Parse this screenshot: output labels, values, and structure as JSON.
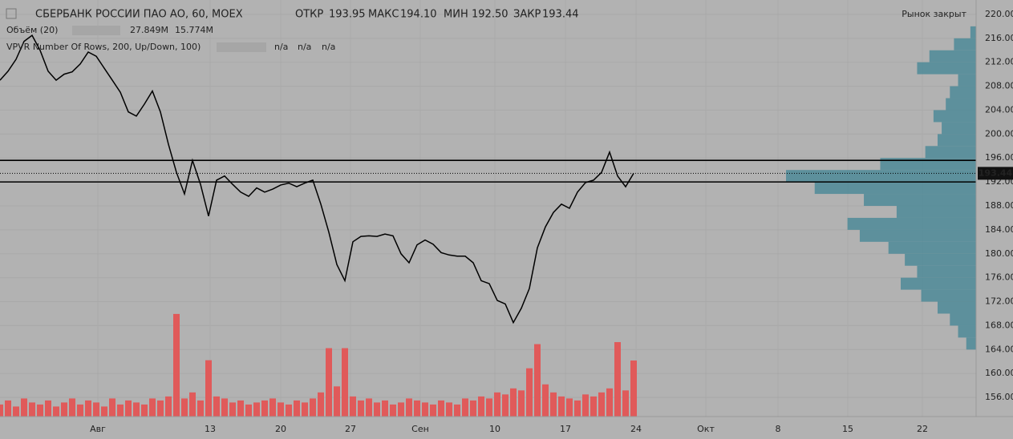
{
  "chart_data": {
    "type": "line",
    "header": {
      "symbol": "СБЕРБАНК РОССИИ ПАО АО, 60, MOEX",
      "open_label": "ОТКР",
      "open": "193.95",
      "high_label": "МАКС",
      "high": "194.10",
      "low_label": "МИН",
      "low": "192.50",
      "close_label": "ЗАКР",
      "close": "193.44",
      "status": "Рынок закрыт"
    },
    "volume_indicator": {
      "name": "Объём (20)",
      "value": "27.849M",
      "ma": "15.774M"
    },
    "vpvr_indicator": {
      "name": "VPVR Number Of Rows, 200, Up/Down, 100)",
      "values": [
        "n/a",
        "n/a",
        "n/a"
      ]
    },
    "last_price": 193.44,
    "last_price_label": "193.44",
    "hlines": [
      195.6,
      192.0
    ],
    "xlim": [
      0,
      121.7
    ],
    "xticks": [
      {
        "value": 12.2,
        "label": "Авг"
      },
      {
        "value": 26.2,
        "label": "13"
      },
      {
        "value": 35,
        "label": "20"
      },
      {
        "value": 43.7,
        "label": "27"
      },
      {
        "value": 52.4,
        "label": "Сен"
      },
      {
        "value": 61.7,
        "label": "10"
      },
      {
        "value": 70.5,
        "label": "17"
      },
      {
        "value": 79.3,
        "label": "24"
      },
      {
        "value": 88,
        "label": "Окт"
      },
      {
        "value": 97,
        "label": "8"
      },
      {
        "value": 105.7,
        "label": "15"
      },
      {
        "value": 115,
        "label": "22"
      }
    ],
    "ylim": [
      152.8,
      222.4
    ],
    "yticks": [
      {
        "value": 156,
        "label": "156.00"
      },
      {
        "value": 160,
        "label": "160.00"
      },
      {
        "value": 164,
        "label": "164.00"
      },
      {
        "value": 168,
        "label": "168.00"
      },
      {
        "value": 172,
        "label": "172.00"
      },
      {
        "value": 176,
        "label": "176.00"
      },
      {
        "value": 180,
        "label": "180.00"
      },
      {
        "value": 184,
        "label": "184.00"
      },
      {
        "value": 188,
        "label": "188.00"
      },
      {
        "value": 192,
        "label": "192.00"
      },
      {
        "value": 196,
        "label": "196.00"
      },
      {
        "value": 200,
        "label": "200.00"
      },
      {
        "value": 204,
        "label": "204.00"
      },
      {
        "value": 208,
        "label": "208.00"
      },
      {
        "value": 212,
        "label": "212.00"
      },
      {
        "value": 216,
        "label": "216.00"
      },
      {
        "value": 220,
        "label": "220.00"
      }
    ],
    "grid": true,
    "series": [
      {
        "color": "#000000",
        "values": [
          209.0,
          210.5,
          212.5,
          215.5,
          216.5,
          214,
          210.5,
          209,
          210,
          210.4,
          211.7,
          213.7,
          213,
          211,
          209,
          207,
          203.7,
          203,
          205,
          207.2,
          203.7,
          198.3,
          193.6,
          190,
          195.6,
          191.6,
          186.3,
          192.3,
          193,
          191.6,
          190.3,
          189.6,
          191,
          190.3,
          190.8,
          191.5,
          191.8,
          191.2,
          191.8,
          192.3,
          188.3,
          183.6,
          178.2,
          175.5,
          182,
          182.9,
          183,
          182.9,
          183.3,
          183,
          180,
          178.5,
          181.5,
          182.3,
          181.6,
          180.2,
          179.8,
          179.6,
          179.6,
          178.5,
          175.5,
          175,
          172.2,
          171.6,
          168.5,
          170.9,
          174.2,
          181,
          184.5,
          186.9,
          188.3,
          187.6,
          190.3,
          191.9,
          192.3,
          193.6,
          197,
          193,
          191.2,
          193.44
        ]
      },
      {
        "color": "#e05a5a",
        "values": [
          6,
          8,
          5,
          9,
          7,
          6,
          8,
          5,
          7,
          9,
          6,
          8,
          7,
          5,
          9,
          6,
          8,
          7,
          6,
          9,
          8,
          10,
          51,
          9,
          12,
          8,
          28,
          10,
          9,
          7,
          8,
          6,
          7,
          8,
          9,
          7,
          6,
          8,
          7,
          9,
          12,
          34,
          15,
          34,
          10,
          8,
          9,
          7,
          8,
          6,
          7,
          9,
          8,
          7,
          6,
          8,
          7,
          6,
          9,
          8,
          10,
          9,
          12,
          11,
          14,
          13,
          24,
          36,
          16,
          12,
          10,
          9,
          8,
          11,
          10,
          12,
          14,
          37,
          13,
          27.849
        ]
      }
    ],
    "volume_lim": [
      0,
      207
    ],
    "volume_profile": {
      "color": "#4d8a98",
      "bins": [
        164,
        166,
        168,
        170,
        172,
        174,
        176,
        178,
        180,
        182,
        184,
        186,
        188,
        190,
        192,
        194,
        196,
        198,
        200,
        202,
        204,
        206,
        208,
        210,
        212,
        214,
        216,
        218
      ],
      "values": [
        12,
        22,
        32,
        47,
        67,
        92,
        72,
        87,
        107,
        142,
        157,
        97,
        137,
        197,
        232,
        117,
        62,
        47,
        42,
        52,
        37,
        32,
        22,
        72,
        57,
        27,
        7
      ]
    }
  }
}
